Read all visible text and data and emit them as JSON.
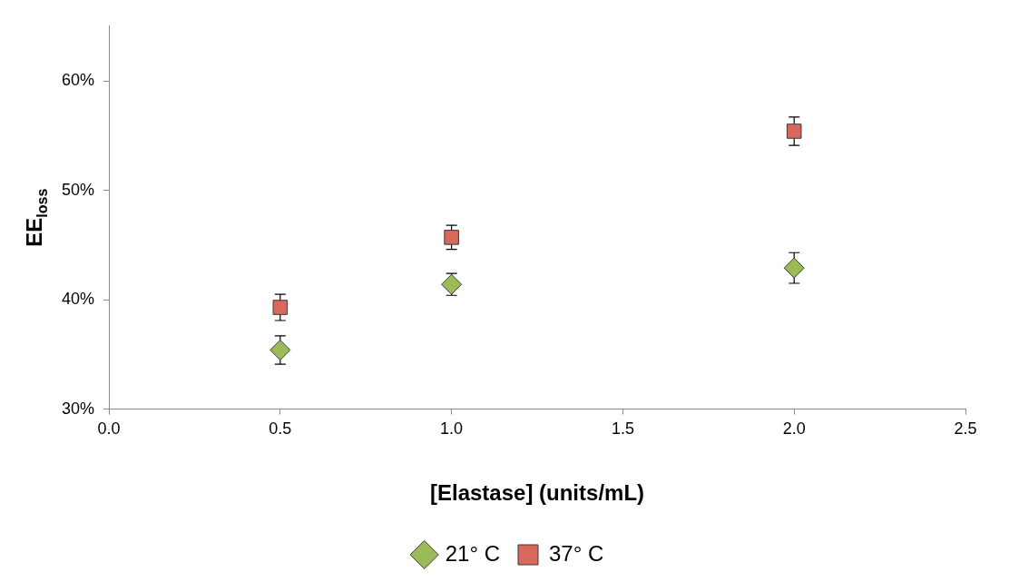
{
  "chart_data": {
    "type": "scatter",
    "xlabel": "[Elastase] (units/mL)",
    "ylabel": "EE$_{loss}$",
    "xlim": [
      0,
      2.5
    ],
    "xticks": [
      {
        "value": 0,
        "label": "0.0"
      },
      {
        "value": 0.5,
        "label": "0.5"
      },
      {
        "value": 1,
        "label": "1.0"
      },
      {
        "value": 1.5,
        "label": "1.5"
      },
      {
        "value": 2,
        "label": "2.0"
      },
      {
        "value": 2.5,
        "label": "2.5"
      }
    ],
    "ylim": [
      30,
      65
    ],
    "yticks": [
      {
        "value": 30,
        "label": "30%"
      },
      {
        "value": 40,
        "label": "40%"
      },
      {
        "value": 50,
        "label": "50%"
      },
      {
        "value": 60,
        "label": "60%"
      }
    ],
    "grid": false,
    "legend": "bottom",
    "series": [
      {
        "name": "21° C",
        "color": "#9bbb59",
        "marker": "diamond",
        "x": [
          0.5,
          1,
          2
        ],
        "values": [
          35.4,
          41.4,
          42.9
        ],
        "errors": [
          1.3,
          1.0,
          1.4
        ]
      },
      {
        "name": "37° C",
        "color": "#d9675c",
        "marker": "square",
        "x": [
          0.5,
          1,
          2
        ],
        "values": [
          39.3,
          45.7,
          55.4
        ],
        "errors": [
          1.2,
          1.1,
          1.3
        ]
      }
    ]
  }
}
